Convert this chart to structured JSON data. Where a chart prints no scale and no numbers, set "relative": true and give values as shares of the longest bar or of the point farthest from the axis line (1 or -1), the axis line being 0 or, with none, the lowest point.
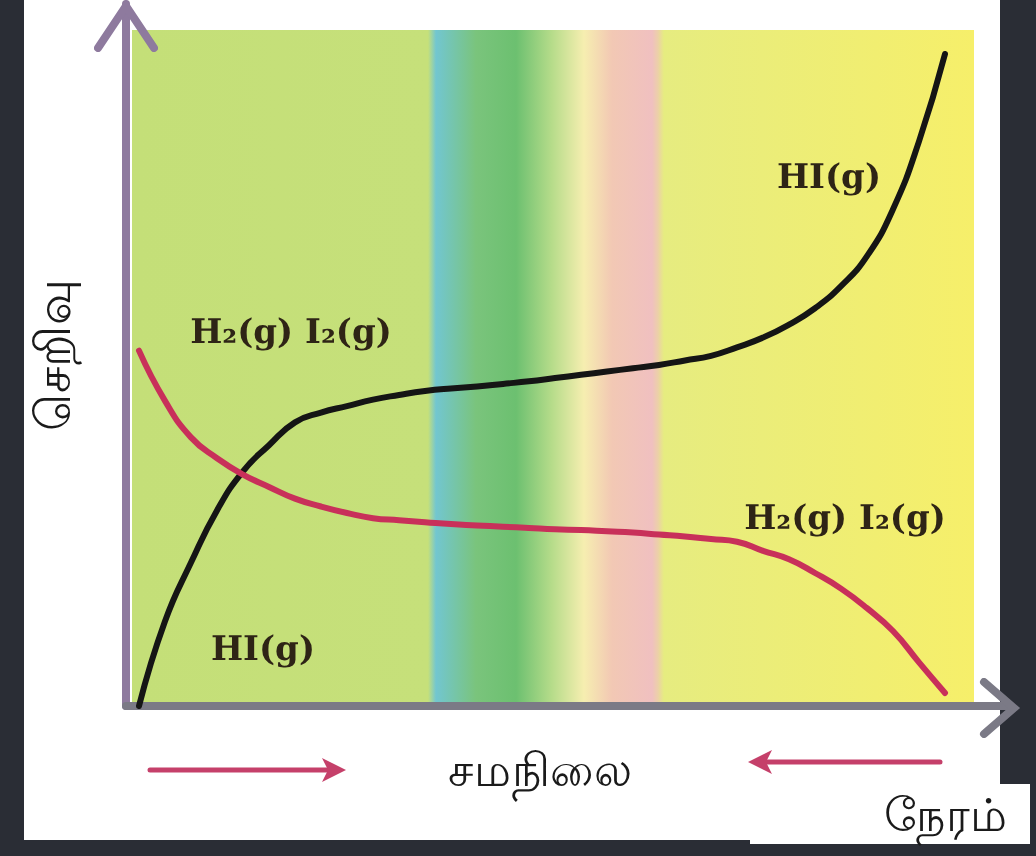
{
  "chart_data": {
    "type": "line",
    "relative": true,
    "ylabel": "செறிவு",
    "xlabel": "நேரம்",
    "annotations": [
      "சமநிலை"
    ],
    "categories": [
      null,
      null,
      null,
      null,
      null,
      null,
      null,
      null,
      null,
      null,
      null,
      null,
      null,
      null,
      null,
      null,
      null,
      null,
      null,
      null,
      null,
      null,
      null,
      null,
      null,
      null,
      null,
      null,
      null,
      null,
      null,
      null
    ],
    "series": [
      {
        "name": "HI(g)",
        "color": "#151515",
        "values": [
          0,
          0.13,
          0.22,
          0.3,
          0.36,
          0.4,
          0.435,
          0.45,
          0.46,
          0.47,
          0.477,
          0.483,
          0.487,
          0.49,
          0.494,
          0.498,
          0.503,
          0.508,
          0.513,
          0.518,
          0.523,
          0.53,
          0.537,
          0.55,
          0.565,
          0.585,
          0.61,
          0.644,
          0.69,
          0.762,
          0.866,
          1
        ]
      },
      {
        "name": "H₂(g) I₂(g)",
        "color": "#c8305a",
        "values": [
          0.545,
          0.468,
          0.412,
          0.38,
          0.355,
          0.336,
          0.318,
          0.306,
          0.296,
          0.288,
          0.285,
          0.282,
          0.279,
          0.277,
          0.275,
          0.273,
          0.271,
          0.27,
          0.268,
          0.266,
          0.263,
          0.26,
          0.256,
          0.252,
          0.238,
          0.225,
          0.204,
          0.18,
          0.15,
          0.115,
          0.067,
          0.02
        ]
      }
    ]
  }
}
